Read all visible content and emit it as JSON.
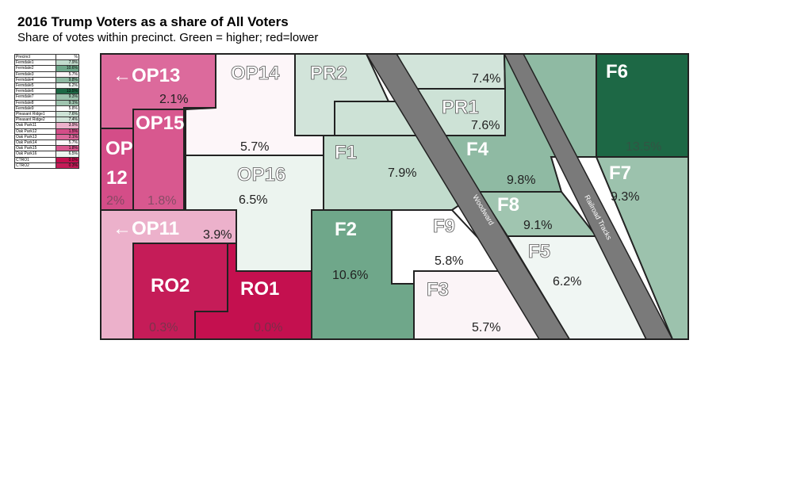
{
  "title": "2016 Trump Voters as a share of All Voters",
  "subtitle": "Share of votes within precinct.  Green = higher; red=lower",
  "legend": {
    "header": [
      "Precinct",
      "%"
    ],
    "rows": [
      {
        "name": "Ferndale1",
        "value": "7.9%",
        "color": "#c2dccd"
      },
      {
        "name": "Ferndale2",
        "value": "10.6%",
        "color": "#6fa78a"
      },
      {
        "name": "Ferndale3",
        "value": "5.7%",
        "color": "#fbf4f7"
      },
      {
        "name": "Ferndale4",
        "value": "9.8%",
        "color": "#8fbaa3"
      },
      {
        "name": "Ferndale5",
        "value": "6.2%",
        "color": "#f0f6f3"
      },
      {
        "name": "Ferndale6",
        "value": "13.5%",
        "color": "#1d6845"
      },
      {
        "name": "Ferndale7",
        "value": "9.3%",
        "color": "#9cc2ad"
      },
      {
        "name": "Ferndale8",
        "value": "9.1%",
        "color": "#a0c5b0"
      },
      {
        "name": "Ferndale9",
        "value": "5.8%",
        "color": "#ffffff"
      },
      {
        "name": "Pleasant Ridge1",
        "value": "7.6%",
        "color": "#cde2d6"
      },
      {
        "name": "Pleasant Ridge2",
        "value": "7.4%",
        "color": "#d2e4da"
      },
      {
        "name": "Oak Park11",
        "value": "3.9%",
        "color": "#ecb1cb"
      },
      {
        "name": "Oak Park12",
        "value": "1.5%",
        "color": "#d44d88"
      },
      {
        "name": "Oak Park13",
        "value": "2.1%",
        "color": "#dc6a9c"
      },
      {
        "name": "Oak Park14",
        "value": "5.7%",
        "color": "#fdf6f9"
      },
      {
        "name": "Oak Park15",
        "value": "1.8%",
        "color": "#d8588f"
      },
      {
        "name": "Oak Park16",
        "value": "6.5%",
        "color": "#ecf4ef"
      },
      {
        "name": "CTRO1",
        "value": "0.0%",
        "color": "#c4104f"
      },
      {
        "name": "CTRO2",
        "value": "0.3%",
        "color": "#c51c58"
      }
    ]
  },
  "map": {
    "roads": {
      "woodward": "Woodward",
      "railroad": "Railroad Tracks"
    },
    "precincts": {
      "op13": {
        "label": "←OP13",
        "pct": "2.1%",
        "color": "#dc6a9c"
      },
      "op14": {
        "label": "OP14",
        "pct": "5.7%",
        "color": "#fdf6f9"
      },
      "pr2": {
        "label": "PR2",
        "pct": "7.4%",
        "color": "#d2e4da"
      },
      "pr1": {
        "label": "PR1",
        "pct": "7.6%",
        "color": "#cde2d6"
      },
      "f6": {
        "label": "F6",
        "pct": "13.5%",
        "color": "#1d6845"
      },
      "op12": {
        "label_line1": "OP",
        "label_line2": "12",
        "pct": "2%",
        "color": "#d44d88"
      },
      "op15": {
        "label": "OP15",
        "pct": "1.8%",
        "color": "#d8588f"
      },
      "op16": {
        "label": "OP16",
        "pct": "6.5%",
        "color": "#ecf4ef"
      },
      "f1": {
        "label": "F1",
        "pct": "7.9%",
        "color": "#c2dccd"
      },
      "f4": {
        "label": "F4",
        "pct": "9.8%",
        "color": "#8fbaa3"
      },
      "f7": {
        "label": "F7",
        "pct": "9.3%",
        "color": "#9cc2ad"
      },
      "f8": {
        "label": "F8",
        "pct": "9.1%",
        "color": "#a0c5b0"
      },
      "op11": {
        "label": "←OP11",
        "pct": "3.9%",
        "color": "#ecb1cb"
      },
      "f2": {
        "label": "F2",
        "pct": "10.6%",
        "color": "#6fa78a"
      },
      "f9": {
        "label": "F9",
        "pct": "5.8%",
        "color": "#ffffff"
      },
      "f5": {
        "label": "F5",
        "pct": "6.2%",
        "color": "#f0f6f3"
      },
      "ro2": {
        "label": "RO2",
        "pct": "0.3%",
        "color": "#c51c58"
      },
      "ro1": {
        "label": "RO1",
        "pct": "0.0%",
        "color": "#c4104f"
      },
      "f3": {
        "label": "F3",
        "pct": "5.7%",
        "color": "#fbf4f7"
      }
    }
  }
}
